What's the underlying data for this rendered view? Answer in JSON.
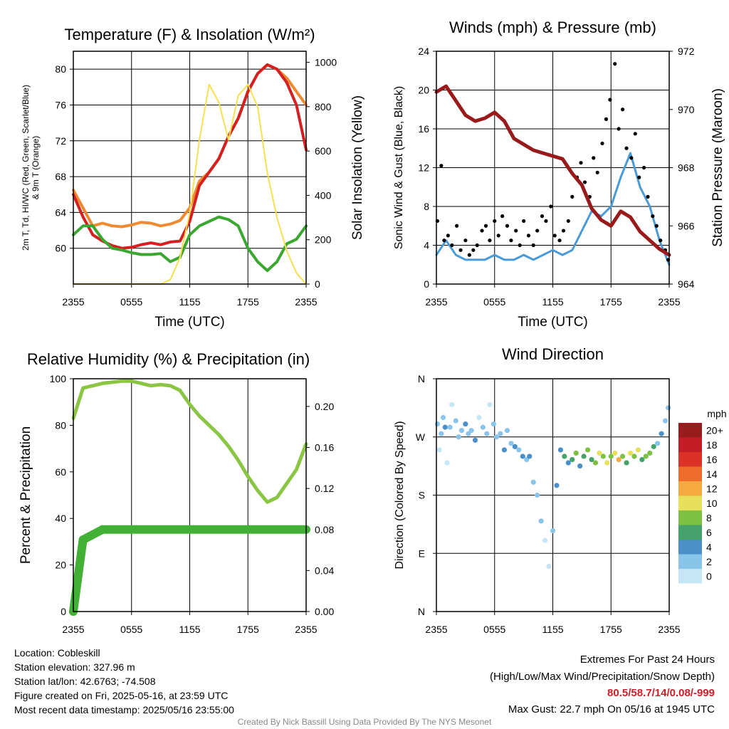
{
  "colors": {
    "temp_red": "#d42020",
    "temp_green": "#3aa830",
    "temp_orange": "#f08a30",
    "solar_yellow": "#f7df50",
    "wind_blue": "#4a9ad6",
    "pressure_maroon": "#981a1a",
    "rh_green": "#8ac544",
    "precip_green": "#41b035"
  },
  "chart_data": [
    {
      "type": "line",
      "title": "Temperature (F) & Insolation (W/m²)",
      "xlabel": "Time (UTC)",
      "ylabel": "2m T, Td, HI/WC (Red, Green, Scarlet/Blue) & 9m T (Orange)",
      "y2label": "Solar Insolation (Yellow)",
      "xticks": [
        "2355",
        "0555",
        "1155",
        "1755",
        "2355"
      ],
      "ylim": [
        56,
        82
      ],
      "yticks": [
        60,
        64,
        68,
        72,
        76,
        80
      ],
      "y2lim": [
        0,
        1050
      ],
      "y2ticks": [
        0,
        200,
        400,
        600,
        800,
        1000
      ],
      "x": [
        0,
        1,
        2,
        3,
        4,
        5,
        6,
        7,
        8,
        9,
        10,
        11,
        12,
        13,
        14,
        15,
        16,
        17,
        18,
        19,
        20,
        21,
        22,
        23,
        24
      ],
      "series": [
        {
          "color_key": "temp_orange",
          "axis": "left",
          "values": [
            66.5,
            64.5,
            62.5,
            62.8,
            62.5,
            62.4,
            62.6,
            62.9,
            62.8,
            62.5,
            62.7,
            63.1,
            64.5,
            67.5,
            68.5,
            70.0,
            72.5,
            74.5,
            77.5,
            79.5,
            80.5,
            80.0,
            79.0,
            77.5,
            76.0
          ]
        },
        {
          "color_key": "temp_red",
          "axis": "left",
          "values": [
            66.0,
            63.5,
            61.5,
            60.8,
            60.3,
            60.0,
            60.1,
            60.4,
            60.6,
            60.4,
            60.7,
            60.8,
            63.0,
            67.0,
            68.5,
            70.0,
            72.5,
            74.5,
            77.5,
            79.5,
            80.5,
            80.0,
            78.5,
            76.0,
            71.0
          ]
        },
        {
          "color_key": "temp_green",
          "axis": "left",
          "values": [
            61.5,
            62.5,
            62.5,
            61.0,
            60.0,
            59.8,
            59.5,
            59.3,
            59.3,
            59.4,
            58.5,
            59.0,
            61.5,
            62.5,
            63.0,
            63.5,
            63.2,
            62.5,
            60.0,
            58.5,
            57.5,
            58.5,
            60.5,
            61.0,
            62.5
          ]
        },
        {
          "color_key": "solar_yellow",
          "axis": "right",
          "values": [
            0,
            0,
            0,
            0,
            0,
            0,
            0,
            0,
            0,
            0,
            20,
            120,
            320,
            650,
            900,
            820,
            650,
            850,
            900,
            800,
            500,
            300,
            150,
            50,
            0
          ]
        }
      ]
    },
    {
      "type": "line",
      "title": "Winds (mph) & Pressure (mb)",
      "xlabel": "Time (UTC)",
      "ylabel": "Sonic Wind & Gust (Blue, Black)",
      "y2label": "Station Pressure (Maroon)",
      "xticks": [
        "2355",
        "0555",
        "1155",
        "1755",
        "2355"
      ],
      "ylim": [
        0,
        24
      ],
      "yticks": [
        0,
        4,
        8,
        12,
        16,
        20,
        24
      ],
      "y2lim": [
        964,
        972
      ],
      "y2ticks": [
        964,
        966,
        968,
        970,
        972
      ],
      "x": [
        0,
        1,
        2,
        3,
        4,
        5,
        6,
        7,
        8,
        9,
        10,
        11,
        12,
        13,
        14,
        15,
        16,
        17,
        18,
        19,
        20,
        21,
        22,
        23,
        24
      ],
      "series": [
        {
          "color_key": "wind_blue",
          "axis": "left",
          "values": [
            3.0,
            4.5,
            3.0,
            2.5,
            2.5,
            2.5,
            3.0,
            2.5,
            2.5,
            3.0,
            2.5,
            3.0,
            3.5,
            3.0,
            3.5,
            5.5,
            7.5,
            7.0,
            8.0,
            11.0,
            13.5,
            10.0,
            8.0,
            4.5,
            2.0
          ]
        },
        {
          "color_key": "pressure_maroon",
          "axis": "right",
          "values": [
            970.6,
            970.8,
            970.3,
            969.8,
            969.6,
            969.7,
            969.9,
            969.6,
            969.0,
            968.8,
            968.6,
            968.5,
            968.4,
            968.3,
            967.8,
            967.4,
            966.6,
            966.2,
            966.0,
            966.5,
            966.3,
            965.8,
            965.5,
            965.2,
            965.0
          ]
        }
      ],
      "gusts": {
        "color": "#000000",
        "x": [
          0.1,
          0.5,
          0.8,
          1.2,
          1.6,
          2.1,
          2.5,
          3.0,
          3.4,
          3.8,
          4.2,
          4.7,
          5.1,
          5.5,
          6.0,
          6.4,
          6.8,
          7.3,
          7.7,
          8.2,
          8.6,
          9.0,
          9.5,
          10.0,
          10.4,
          10.9,
          11.3,
          11.8,
          12.2,
          12.7,
          13.1,
          13.6,
          14.0,
          14.5,
          14.9,
          15.3,
          15.8,
          16.2,
          16.6,
          17.1,
          17.5,
          17.9,
          18.4,
          18.8,
          19.2,
          19.6,
          20.1,
          20.5,
          20.9,
          21.4,
          21.8,
          22.3,
          22.7,
          23.1,
          23.6,
          23.9
        ],
        "values": [
          6.5,
          12.2,
          4.5,
          5.0,
          4.0,
          6.0,
          3.5,
          4.5,
          3.0,
          3.5,
          4.0,
          5.5,
          6.0,
          4.5,
          6.5,
          5.0,
          7.0,
          6.0,
          4.5,
          5.5,
          4.0,
          6.5,
          5.0,
          4.0,
          5.5,
          7.0,
          6.5,
          8.0,
          5.0,
          4.5,
          5.5,
          6.5,
          9.0,
          11.0,
          12.5,
          10.5,
          9.0,
          13.0,
          11.5,
          14.5,
          17.0,
          19.0,
          22.7,
          16.0,
          18.0,
          14.0,
          13.0,
          15.5,
          11.0,
          12.0,
          9.0,
          7.0,
          6.0,
          4.5,
          3.5,
          2.5
        ]
      }
    },
    {
      "type": "line",
      "title": "Relative Humidity (%) & Precipitation (in)",
      "xlabel": "",
      "ylabel": "Percent & Precipitation",
      "xticks": [
        "2355",
        "0555",
        "1155",
        "1755",
        "2355"
      ],
      "ylim": [
        0,
        100
      ],
      "yticks": [
        0,
        20,
        40,
        60,
        80,
        100
      ],
      "y2lim": [
        0,
        0.227
      ],
      "y2ticks": [
        "0.00",
        "0.04",
        "0.08",
        "0.12",
        "0.16",
        "0.20"
      ],
      "x": [
        0,
        1,
        2,
        3,
        4,
        5,
        6,
        7,
        8,
        9,
        10,
        11,
        12,
        13,
        14,
        15,
        16,
        17,
        18,
        19,
        20,
        21,
        22,
        23,
        24
      ],
      "series": [
        {
          "color_key": "rh_green",
          "axis": "left",
          "values": [
            83,
            96,
            97,
            98,
            98.5,
            99,
            99,
            98,
            97,
            97.5,
            97,
            95,
            89,
            84,
            80,
            76,
            71,
            65,
            58,
            52,
            47,
            49,
            55,
            61,
            72
          ]
        },
        {
          "color_key": "precip_green",
          "axis": "right",
          "values": [
            0.0,
            0.07,
            0.075,
            0.08,
            0.08,
            0.08,
            0.08,
            0.08,
            0.08,
            0.08,
            0.08,
            0.08,
            0.08,
            0.08,
            0.08,
            0.08,
            0.08,
            0.08,
            0.08,
            0.08,
            0.08,
            0.08,
            0.08,
            0.08,
            0.08
          ]
        }
      ]
    },
    {
      "type": "scatter",
      "title": "Wind Direction",
      "xlabel": "",
      "ylabel": "Direction (Colored By Speed)",
      "xticks": [
        "2355",
        "0555",
        "1155",
        "1755",
        "2355"
      ],
      "yticks": [
        "N",
        "E",
        "S",
        "W",
        "N"
      ],
      "ylim": [
        0,
        360
      ],
      "colorbar": {
        "label": "mph",
        "ticks": [
          "0",
          "2",
          "4",
          "6",
          "8",
          "10",
          "12",
          "14",
          "16",
          "18",
          "20+"
        ],
        "colors": [
          "#c6e6f7",
          "#89c4ea",
          "#4a8fc8",
          "#45a26a",
          "#7cc142",
          "#e8e05a",
          "#f7a941",
          "#ef6c2c",
          "#dc3127",
          "#c31c24",
          "#981b1e"
        ]
      },
      "x": [
        0.1,
        0.3,
        0.5,
        0.7,
        0.9,
        1.1,
        1.4,
        1.6,
        2.0,
        2.3,
        2.6,
        3.0,
        3.3,
        3.6,
        4.0,
        4.4,
        4.8,
        5.2,
        5.5,
        5.9,
        6.2,
        6.6,
        7.0,
        7.3,
        7.7,
        8.1,
        8.5,
        8.9,
        9.3,
        9.6,
        10.0,
        10.4,
        10.8,
        11.2,
        11.6,
        12.0,
        12.4,
        12.8,
        13.2,
        13.6,
        14.0,
        14.4,
        14.8,
        15.2,
        15.6,
        16.0,
        16.4,
        16.8,
        17.2,
        17.6,
        18.0,
        18.4,
        18.8,
        19.2,
        19.6,
        20.0,
        20.4,
        20.8,
        21.2,
        21.6,
        22.0,
        22.4,
        22.8,
        23.2,
        23.6,
        23.9
      ],
      "values": [
        290,
        250,
        275,
        300,
        285,
        230,
        285,
        320,
        295,
        270,
        280,
        290,
        275,
        280,
        265,
        300,
        285,
        275,
        320,
        290,
        270,
        275,
        250,
        280,
        260,
        255,
        250,
        240,
        235,
        240,
        200,
        180,
        140,
        110,
        70,
        125,
        195,
        250,
        240,
        230,
        235,
        245,
        225,
        240,
        250,
        235,
        230,
        245,
        240,
        230,
        240,
        245,
        235,
        240,
        230,
        245,
        240,
        250,
        235,
        240,
        245,
        255,
        260,
        275,
        295,
        315
      ],
      "speeds": [
        2,
        1,
        3,
        2,
        4,
        1,
        3,
        1,
        3,
        3,
        2,
        4,
        3,
        2,
        4,
        1,
        3,
        2,
        1,
        3,
        3,
        2,
        4,
        2,
        3,
        4,
        3,
        4,
        3,
        4,
        3,
        2,
        2,
        1,
        1,
        3,
        4,
        5,
        6,
        4,
        7,
        8,
        5,
        6,
        9,
        7,
        8,
        10,
        9,
        11,
        8,
        10,
        12,
        9,
        7,
        11,
        8,
        10,
        6,
        9,
        8,
        7,
        3,
        4,
        2,
        2
      ]
    }
  ],
  "footer": {
    "location": "Location: Cobleskill",
    "elevation": "Station elevation: 327.96 m",
    "latlon": "Station lat/lon: 42.6763; -74.508",
    "created": "Figure created on Fri, 2025-05-16, at 23:59 UTC",
    "recent": "Most recent data timestamp: 2025/05/16 23:55:00",
    "extremes_title": "Extremes For Past 24 Hours",
    "extremes_sub": "(High/Low/Max Wind/Precipitation/Snow Depth)",
    "extremes_values": "80.5/58.7/14/0.08/-999",
    "extremes_color": "#c8202a",
    "max_gust": "Max Gust: 22.7 mph On 05/16 at 1945 UTC",
    "credit": "Created By Nick Bassill Using Data Provided By The NYS Mesonet"
  }
}
